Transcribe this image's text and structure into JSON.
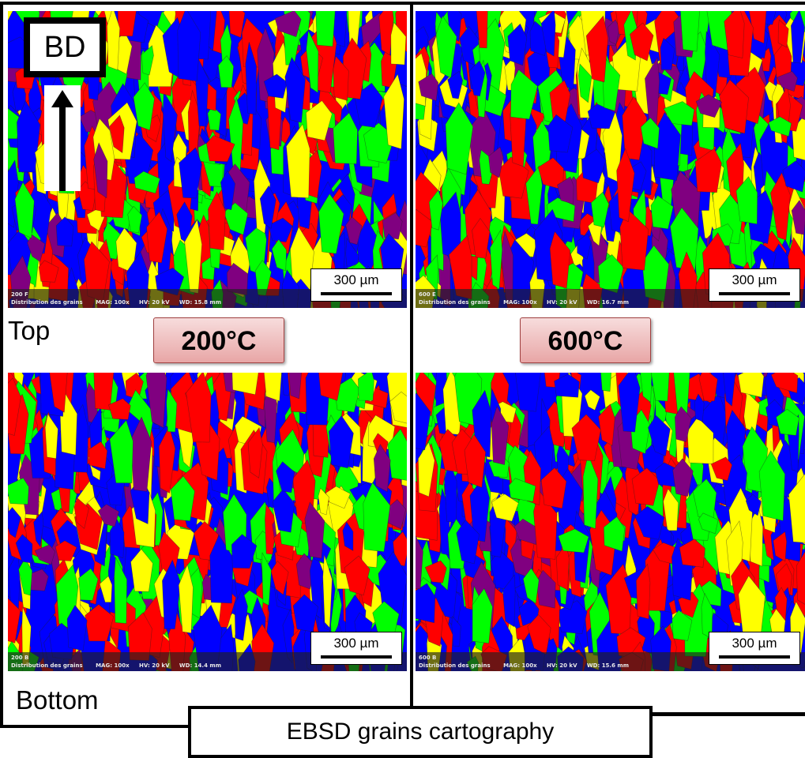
{
  "direction_label": "BD",
  "row_labels": {
    "top": "Top",
    "bottom": "Bottom"
  },
  "temperatures": [
    "200°C",
    "600°C"
  ],
  "caption": "EBSD grains cartography",
  "panels": [
    {
      "id": "200 F",
      "scale": "300 µm",
      "info": [
        "Distribution des grains",
        "MAG: 100x",
        "HV: 20 kV",
        "WD: 15.8 mm"
      ]
    },
    {
      "id": "600 E",
      "scale": "300 µm",
      "info": [
        "Distribution des grains",
        "MAG: 100x",
        "HV: 20 kV",
        "WD: 16.7 mm"
      ]
    },
    {
      "id": "200 B",
      "scale": "300 µm",
      "info": [
        "Distribution des grains",
        "MAG: 100x",
        "HV: 20 kV",
        "WD: 14.4 mm"
      ]
    },
    {
      "id": "600 B",
      "scale": "300 µm",
      "info": [
        "Distribution des grains",
        "MAG: 100x",
        "HV: 20 kV",
        "WD: 15.6 mm"
      ]
    }
  ],
  "grain_colors": [
    "#ff0000",
    "#0000ff",
    "#00ff00",
    "#ffff00",
    "#800080"
  ]
}
